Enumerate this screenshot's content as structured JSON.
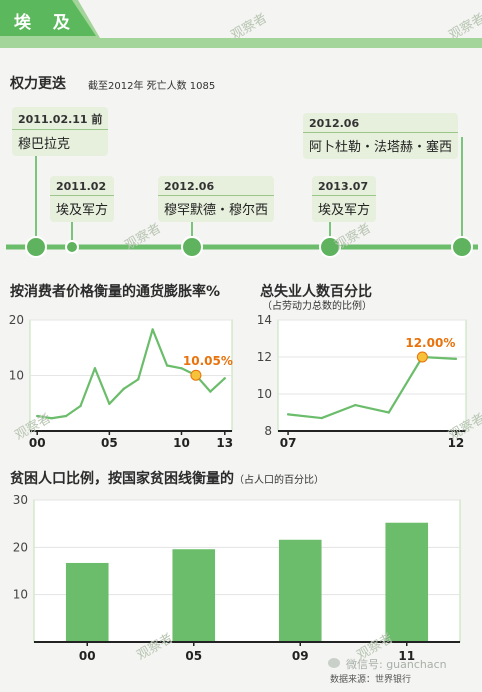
{
  "header": {
    "title": "埃 及"
  },
  "timeline": {
    "title": "权力更迭",
    "subtitle": "截至2012年 死亡人数 1085",
    "events": [
      {
        "date": "2011.02.11 前",
        "name": "穆巴拉克"
      },
      {
        "date": "2011.02",
        "name": "埃及军方"
      },
      {
        "date": "2012.06",
        "name": "穆罕默德・穆尔西"
      },
      {
        "date": "2013.07",
        "name": "埃及军方"
      },
      {
        "date": "2012.06",
        "name": "阿卜杜勒・法塔赫・塞西"
      }
    ]
  },
  "chart_data": [
    {
      "type": "line",
      "title": "按消费者价格衡量的通货膨胀率%",
      "x_tick_labels": [
        "00",
        "05",
        "10",
        "13"
      ],
      "x_ticks": [
        2000,
        2005,
        2010,
        2013
      ],
      "xlim": [
        1999.5,
        2013.5
      ],
      "y_ticks": [
        10,
        20
      ],
      "ylim": [
        0,
        20
      ],
      "series": [
        {
          "x": [
            2000,
            2001,
            2002,
            2003,
            2004,
            2005,
            2006,
            2007,
            2008,
            2009,
            2010,
            2011,
            2012,
            2013
          ],
          "values": [
            2.7,
            2.3,
            2.7,
            4.5,
            11.3,
            4.9,
            7.6,
            9.3,
            18.3,
            11.8,
            11.3,
            10.05,
            7.1,
            9.5
          ]
        }
      ],
      "annotation": {
        "x": 2011,
        "value": 10.05,
        "label": "10.05%"
      }
    },
    {
      "type": "line",
      "title": "总失业人数百分比",
      "subtitle": "（占劳动力总数的比例）",
      "x_tick_labels": [
        "07",
        "12"
      ],
      "x_ticks": [
        2007,
        2012
      ],
      "xlim": [
        2006.7,
        2012.3
      ],
      "y_ticks": [
        8,
        10,
        12,
        14
      ],
      "ylim": [
        8,
        14
      ],
      "series": [
        {
          "x": [
            2007,
            2008,
            2009,
            2010,
            2011,
            2012
          ],
          "values": [
            8.9,
            8.7,
            9.4,
            9.0,
            12.0,
            11.9
          ]
        }
      ],
      "annotation": {
        "x": 2011,
        "value": 12.0,
        "label": "12.00%"
      }
    },
    {
      "type": "bar",
      "title": "贫困人口比例，按国家贫困线衡量的",
      "subtitle": "（占人口的百分比）",
      "categories": [
        "00",
        "05",
        "09",
        "11"
      ],
      "values": [
        16.7,
        19.6,
        21.6,
        25.2
      ],
      "y_ticks": [
        10,
        20,
        30
      ],
      "ylim": [
        0,
        30
      ]
    }
  ],
  "footer": {
    "source": "数据来源：世界银行",
    "wechat": "微信号: guanchacn"
  },
  "watermark": "观察者",
  "colors": {
    "green": "#6bbd6b",
    "dark_green": "#4e9e4e",
    "light_green": "#e7f0dc",
    "highlight": "#f5a623",
    "label_orange": "#e8720c"
  }
}
